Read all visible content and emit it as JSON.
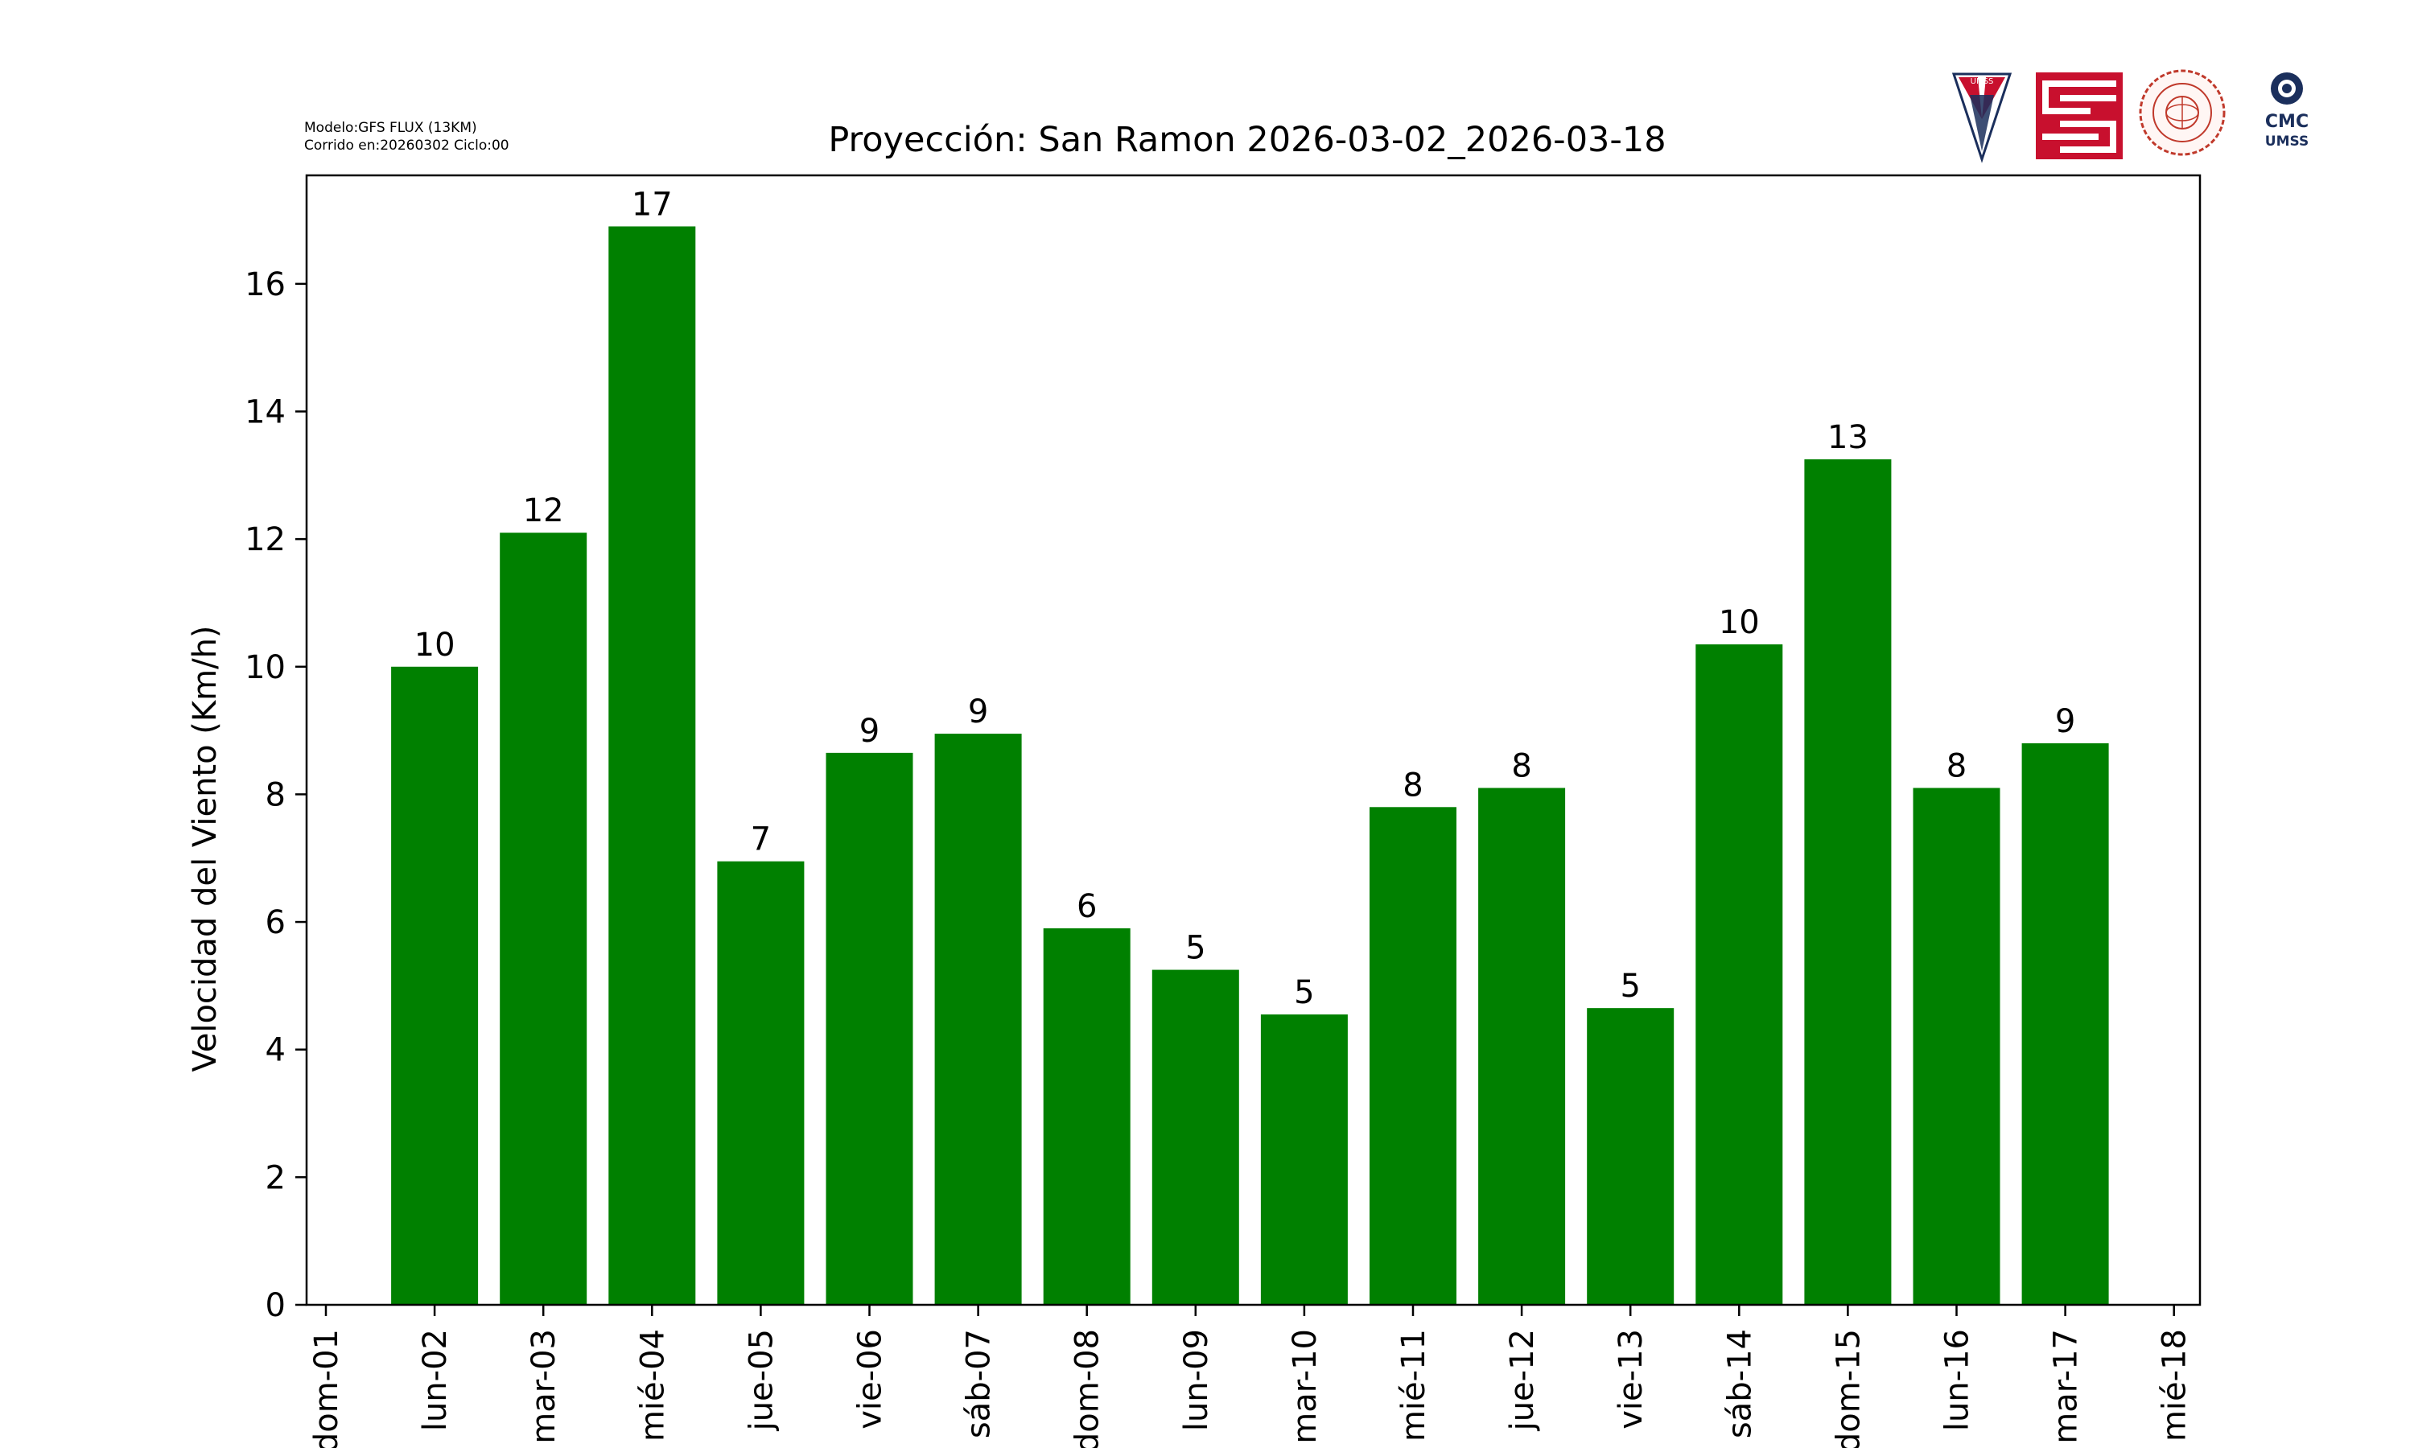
{
  "header": {
    "model": "Modelo:GFS FLUX (13KM)",
    "run": "Corrido en:20260302 Ciclo:00"
  },
  "logos": [
    {
      "name": "umss-shield-logo",
      "text": "UMSS",
      "color": "#c8102e"
    },
    {
      "name": "faculty-maze-logo",
      "text": "",
      "color": "#c8102e"
    },
    {
      "name": "department-seal-logo",
      "text": "",
      "color": "#c0392b"
    },
    {
      "name": "cmc-umss-logo",
      "text": "CMC UMSS",
      "color": "#1b2f5c"
    }
  ],
  "colors": {
    "bar": "#008000",
    "axis": "#000000",
    "background": "#ffffff"
  },
  "chart_data": {
    "type": "bar",
    "title": "Proyección: San Ramon  2026-03-02_2026-03-18",
    "xlabel": "",
    "ylabel": "Velocidad del Viento (Km/h)",
    "ylim": [
      0,
      17.7
    ],
    "yticks": [
      0,
      2,
      4,
      6,
      8,
      10,
      12,
      14,
      16
    ],
    "xticks": [
      "dom-01",
      "lun-02",
      "mar-03",
      "mié-04",
      "jue-05",
      "vie-06",
      "sáb-07",
      "dom-08",
      "lun-09",
      "mar-10",
      "mié-11",
      "jue-12",
      "vie-13",
      "sáb-14",
      "dom-15",
      "lun-16",
      "mar-17",
      "mié-18"
    ],
    "categories": [
      "lun-02",
      "mar-03",
      "mié-04",
      "jue-05",
      "vie-06",
      "sáb-07",
      "dom-08",
      "lun-09",
      "mar-10",
      "mié-11",
      "jue-12",
      "vie-13",
      "sáb-14",
      "dom-15",
      "lun-16",
      "mar-17"
    ],
    "values": [
      10.0,
      12.1,
      16.9,
      6.95,
      8.65,
      8.95,
      5.9,
      5.25,
      4.55,
      7.8,
      8.1,
      4.65,
      10.35,
      13.25,
      8.1,
      8.8
    ],
    "labels": [
      "10",
      "12",
      "17",
      "7",
      "9",
      "9",
      "6",
      "5",
      "5",
      "8",
      "8",
      "5",
      "10",
      "13",
      "8",
      "9"
    ],
    "grid": false,
    "legend": "none"
  }
}
